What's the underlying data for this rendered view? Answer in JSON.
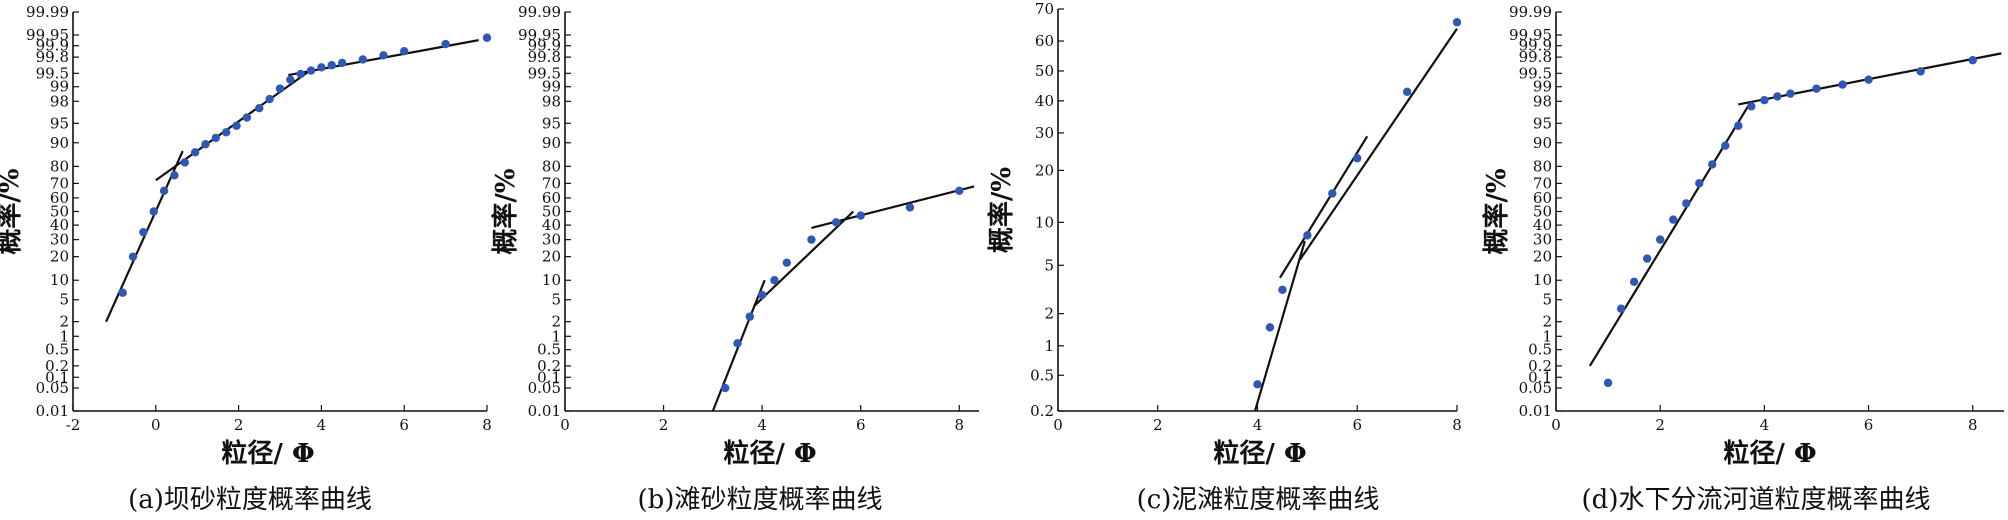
{
  "chart_data": [
    {
      "type": "scatter",
      "caption": "(a)坝砂粒度概率曲线",
      "xlabel": "粒径/ Φ",
      "ylabel": "概率/%",
      "xlim": [
        -2,
        8
      ],
      "x_ticks": [
        -2,
        0,
        2,
        4,
        6,
        8
      ],
      "y_scale": "probability",
      "y_ticks": [
        0.01,
        0.05,
        0.1,
        0.2,
        0.5,
        1,
        2,
        5,
        10,
        20,
        30,
        40,
        50,
        60,
        70,
        80,
        90,
        95,
        98,
        99,
        99.5,
        99.8,
        99.9,
        99.95,
        99.99
      ],
      "points": [
        {
          "x": -0.8,
          "y": 6.5
        },
        {
          "x": -0.55,
          "y": 20
        },
        {
          "x": -0.3,
          "y": 35
        },
        {
          "x": -0.05,
          "y": 50
        },
        {
          "x": 0.2,
          "y": 65
        },
        {
          "x": 0.45,
          "y": 75
        },
        {
          "x": 0.7,
          "y": 82
        },
        {
          "x": 0.95,
          "y": 86.5
        },
        {
          "x": 1.2,
          "y": 89.5
        },
        {
          "x": 1.45,
          "y": 91.5
        },
        {
          "x": 1.7,
          "y": 93
        },
        {
          "x": 1.95,
          "y": 94.5
        },
        {
          "x": 2.2,
          "y": 96
        },
        {
          "x": 2.5,
          "y": 97.3
        },
        {
          "x": 2.75,
          "y": 98.2
        },
        {
          "x": 3.0,
          "y": 98.9
        },
        {
          "x": 3.25,
          "y": 99.3
        },
        {
          "x": 3.5,
          "y": 99.48
        },
        {
          "x": 3.75,
          "y": 99.57
        },
        {
          "x": 4.0,
          "y": 99.64
        },
        {
          "x": 4.25,
          "y": 99.68
        },
        {
          "x": 4.5,
          "y": 99.72
        },
        {
          "x": 5.0,
          "y": 99.77
        },
        {
          "x": 5.5,
          "y": 99.82
        },
        {
          "x": 6.0,
          "y": 99.86
        },
        {
          "x": 7.0,
          "y": 99.91
        },
        {
          "x": 8.0,
          "y": 99.94
        }
      ],
      "fit_lines": [
        [
          {
            "x": -1.2,
            "y": 2
          },
          {
            "x": 0.65,
            "y": 87
          }
        ],
        [
          {
            "x": 0.0,
            "y": 72
          },
          {
            "x": 3.7,
            "y": 99.55
          }
        ],
        [
          {
            "x": 3.2,
            "y": 99.45
          },
          {
            "x": 7.8,
            "y": 99.93
          }
        ]
      ]
    },
    {
      "type": "scatter",
      "caption": "(b)滩砂粒度概率曲线",
      "xlabel": "粒径/ Φ",
      "ylabel": "概率/%",
      "xlim": [
        0,
        8.4
      ],
      "x_ticks": [
        0,
        2,
        4,
        6,
        8
      ],
      "y_scale": "probability",
      "y_ticks": [
        0.01,
        0.05,
        0.1,
        0.2,
        0.5,
        1,
        2,
        5,
        10,
        20,
        30,
        40,
        50,
        60,
        70,
        80,
        90,
        95,
        98,
        99,
        99.5,
        99.8,
        99.9,
        99.95,
        99.99
      ],
      "points": [
        {
          "x": 3.25,
          "y": 0.05
        },
        {
          "x": 3.5,
          "y": 0.7
        },
        {
          "x": 3.75,
          "y": 2.5
        },
        {
          "x": 4.0,
          "y": 6
        },
        {
          "x": 4.25,
          "y": 10
        },
        {
          "x": 4.5,
          "y": 17
        },
        {
          "x": 5.0,
          "y": 30
        },
        {
          "x": 5.5,
          "y": 42
        },
        {
          "x": 6.0,
          "y": 47
        },
        {
          "x": 7.0,
          "y": 53
        },
        {
          "x": 8.0,
          "y": 65
        }
      ],
      "fit_lines": [
        [
          {
            "x": 3.0,
            "y": 0.01
          },
          {
            "x": 4.05,
            "y": 10
          }
        ],
        [
          {
            "x": 3.85,
            "y": 4
          },
          {
            "x": 5.85,
            "y": 50
          }
        ],
        [
          {
            "x": 5.0,
            "y": 38
          },
          {
            "x": 8.3,
            "y": 68
          }
        ]
      ]
    },
    {
      "type": "scatter",
      "caption": "(c)泥滩粒度概率曲线",
      "xlabel": "粒径/ Φ",
      "ylabel": "概率/%",
      "xlim": [
        0,
        8
      ],
      "x_ticks": [
        0,
        2,
        4,
        6,
        8
      ],
      "y_scale": "probability",
      "y_ticks": [
        0.2,
        0.5,
        1,
        2,
        5,
        10,
        20,
        30,
        40,
        50,
        60,
        70
      ],
      "points": [
        {
          "x": 4.0,
          "y": 0.4
        },
        {
          "x": 4.25,
          "y": 1.5
        },
        {
          "x": 4.5,
          "y": 3.2
        },
        {
          "x": 5.0,
          "y": 8.2
        },
        {
          "x": 5.5,
          "y": 15
        },
        {
          "x": 6.0,
          "y": 23
        },
        {
          "x": 7.0,
          "y": 43
        },
        {
          "x": 8.0,
          "y": 66
        }
      ],
      "fit_lines": [
        [
          {
            "x": 3.95,
            "y": 0.2
          },
          {
            "x": 4.95,
            "y": 7.5
          }
        ],
        [
          {
            "x": 4.45,
            "y": 4
          },
          {
            "x": 6.2,
            "y": 29
          }
        ],
        [
          {
            "x": 4.85,
            "y": 5.5
          },
          {
            "x": 8.0,
            "y": 64
          }
        ]
      ]
    },
    {
      "type": "scatter",
      "caption": "(d)水下分流河道粒度概率曲线",
      "xlabel": "粒径/ Φ",
      "ylabel": "概率/%",
      "xlim": [
        0,
        8.6
      ],
      "x_ticks": [
        0,
        2,
        4,
        6,
        8
      ],
      "y_scale": "probability",
      "y_ticks": [
        0.01,
        0.05,
        0.1,
        0.2,
        0.5,
        1,
        2,
        5,
        10,
        20,
        30,
        40,
        50,
        60,
        70,
        80,
        90,
        95,
        98,
        99,
        99.5,
        99.8,
        99.9,
        99.95,
        99.99
      ],
      "points": [
        {
          "x": 1.0,
          "y": 0.07
        },
        {
          "x": 1.25,
          "y": 3.5
        },
        {
          "x": 1.5,
          "y": 9.5
        },
        {
          "x": 1.75,
          "y": 19
        },
        {
          "x": 2.0,
          "y": 30
        },
        {
          "x": 2.25,
          "y": 44
        },
        {
          "x": 2.5,
          "y": 56
        },
        {
          "x": 2.75,
          "y": 70
        },
        {
          "x": 3.0,
          "y": 81
        },
        {
          "x": 3.25,
          "y": 89
        },
        {
          "x": 3.5,
          "y": 94.5
        },
        {
          "x": 3.75,
          "y": 97.5
        },
        {
          "x": 4.0,
          "y": 98.1
        },
        {
          "x": 4.25,
          "y": 98.4
        },
        {
          "x": 4.5,
          "y": 98.6
        },
        {
          "x": 5.0,
          "y": 98.9
        },
        {
          "x": 5.5,
          "y": 99.1
        },
        {
          "x": 6.0,
          "y": 99.3
        },
        {
          "x": 7.0,
          "y": 99.55
        },
        {
          "x": 8.0,
          "y": 99.76
        }
      ],
      "fit_lines": [
        [
          {
            "x": 0.65,
            "y": 0.2
          },
          {
            "x": 3.72,
            "y": 97.8
          }
        ],
        [
          {
            "x": 3.5,
            "y": 97.7
          },
          {
            "x": 8.55,
            "y": 99.84
          }
        ]
      ]
    }
  ],
  "style": {
    "point_color": "#2f57b5",
    "line_color": "#111111"
  }
}
